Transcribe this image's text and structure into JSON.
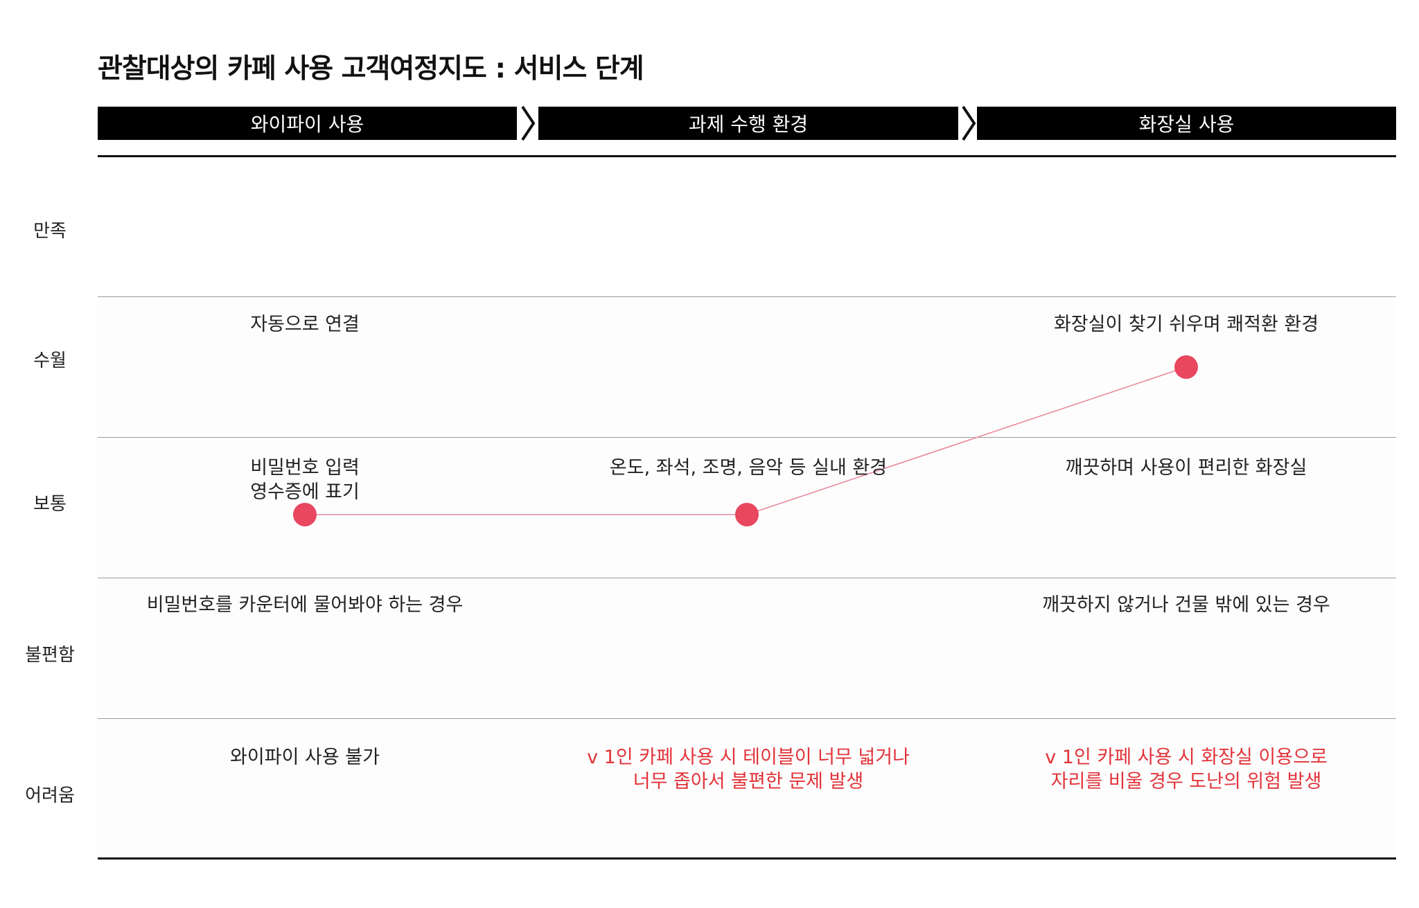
{
  "title": "관찰대상의 카페 사용 고객여정지도 : 서비스 단계",
  "stages": [
    {
      "label": "와이파이 사용"
    },
    {
      "label": "과제 수행 환경"
    },
    {
      "label": "화장실 사용"
    }
  ],
  "rows": [
    {
      "label": "만족"
    },
    {
      "label": "수월"
    },
    {
      "label": "보통"
    },
    {
      "label": "불편함"
    },
    {
      "label": "어려움"
    }
  ],
  "cells": {
    "wifi_smooth": [
      "자동으로 연결"
    ],
    "wifi_normal": [
      "비밀번호 입력",
      "영수증에 표기"
    ],
    "wifi_uncomfortable": [
      "비밀번호를 카운터에 물어봐야 하는 경우"
    ],
    "wifi_difficult": [
      "와이파이 사용 불가"
    ],
    "task_normal": [
      "온도, 좌석, 조명, 음악 등 실내 환경"
    ],
    "task_difficult": [
      "v 1인 카페 사용 시 테이블이 너무 넓거나",
      "너무 좁아서 불편한 문제 발생"
    ],
    "toilet_smooth": [
      "화장실이 찾기 쉬우며 쾌적환 환경"
    ],
    "toilet_normal": [
      "깨끗하며 사용이 편리한 화장실"
    ],
    "toilet_uncomfortable": [
      "깨끗하지 않거나 건물 밖에 있는 경우"
    ],
    "toilet_difficult": [
      "v 1인 카페 사용 시 화장실 이용으로",
      "자리를 비울 경우 도난의 위험 발생"
    ]
  },
  "journey": {
    "points": [
      {
        "stage": "와이파이 사용",
        "level": "보통"
      },
      {
        "stage": "과제 수행 환경",
        "level": "보통"
      },
      {
        "stage": "화장실 사용",
        "level": "수월"
      }
    ],
    "point_color": "#e8475f",
    "line_color": "#e8889a"
  },
  "colors": {
    "stage_bg": "#000000",
    "stage_text": "#ffffff",
    "alert_text": "#e23339"
  }
}
